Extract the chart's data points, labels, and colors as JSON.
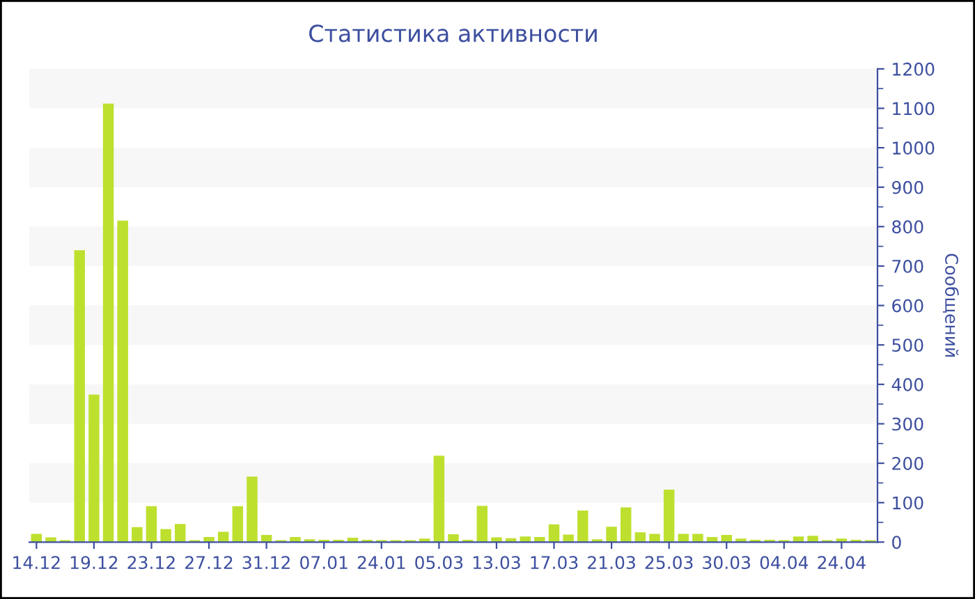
{
  "chart_data": {
    "type": "bar",
    "title": "Статистика активности",
    "ylabel": "Сообщений",
    "categories": [
      "14.12",
      null,
      null,
      null,
      "19.12",
      null,
      null,
      null,
      "23.12",
      null,
      null,
      null,
      "27.12",
      null,
      null,
      null,
      "31.12",
      null,
      null,
      null,
      "07.01",
      null,
      null,
      null,
      "24.01",
      null,
      null,
      null,
      "05.03",
      null,
      null,
      null,
      "13.03",
      null,
      null,
      null,
      "17.03",
      null,
      null,
      null,
      "21.03",
      null,
      null,
      null,
      "25.03",
      null,
      null,
      null,
      "30.03",
      null,
      null,
      null,
      "04.04",
      null,
      null,
      null,
      "24.04",
      null,
      null
    ],
    "values": [
      21,
      12,
      5,
      740,
      374,
      1112,
      815,
      38,
      91,
      33,
      46,
      5,
      13,
      26,
      91,
      166,
      18,
      5,
      13,
      7,
      6,
      6,
      11,
      6,
      5,
      5,
      5,
      9,
      219,
      20,
      6,
      92,
      12,
      10,
      14,
      13,
      45,
      19,
      80,
      7,
      39,
      88,
      25,
      21,
      133,
      21,
      21,
      13,
      18,
      9,
      6,
      6,
      5,
      14,
      16,
      5,
      9,
      6,
      5
    ],
    "color": "#bde02f",
    "ylim": [
      0,
      1200
    ],
    "yticks": [
      0,
      100,
      200,
      300,
      400,
      500,
      600,
      700,
      800,
      900,
      1000,
      1100,
      1200
    ],
    "bands": [
      {
        "axis": "y",
        "from": 100,
        "to": 200,
        "color": "#f7f7f7"
      },
      {
        "axis": "y",
        "from": 300,
        "to": 400,
        "color": "#f7f7f7"
      },
      {
        "axis": "y",
        "from": 500,
        "to": 600,
        "color": "#f7f7f7"
      },
      {
        "axis": "y",
        "from": 700,
        "to": 800,
        "color": "#f7f7f7"
      },
      {
        "axis": "y",
        "from": 900,
        "to": 1000,
        "color": "#f7f7f7"
      },
      {
        "axis": "y",
        "from": 1100,
        "to": 1200,
        "color": "#f7f7f7"
      }
    ]
  }
}
